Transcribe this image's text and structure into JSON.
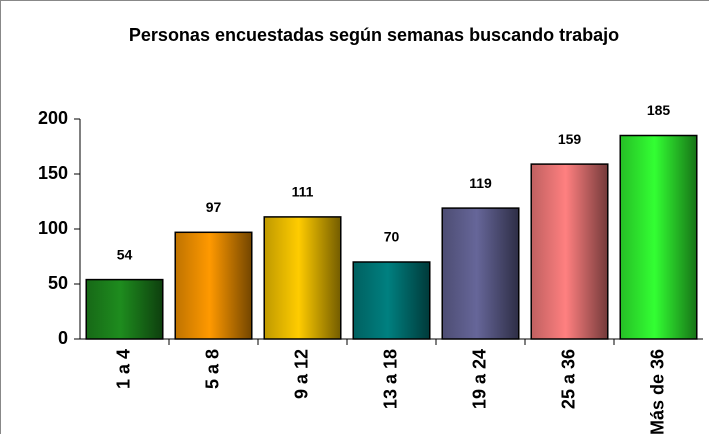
{
  "chart_data": {
    "type": "bar",
    "title": "Personas encuestadas según semanas buscando trabajo",
    "categories": [
      "1 a 4",
      "5 a 8",
      "9 a 12",
      "13 a 18",
      "19 a 24",
      "25 a 36",
      "Más de 36"
    ],
    "values": [
      54,
      97,
      111,
      70,
      119,
      159,
      185
    ],
    "colors": [
      "#1e8c1e",
      "#ff9900",
      "#ffcc00",
      "#008080",
      "#666699",
      "#ff8080",
      "#33ff33"
    ],
    "ylim": [
      0,
      200
    ],
    "yticks": [
      0,
      50,
      100,
      150,
      200
    ],
    "grid": false
  }
}
